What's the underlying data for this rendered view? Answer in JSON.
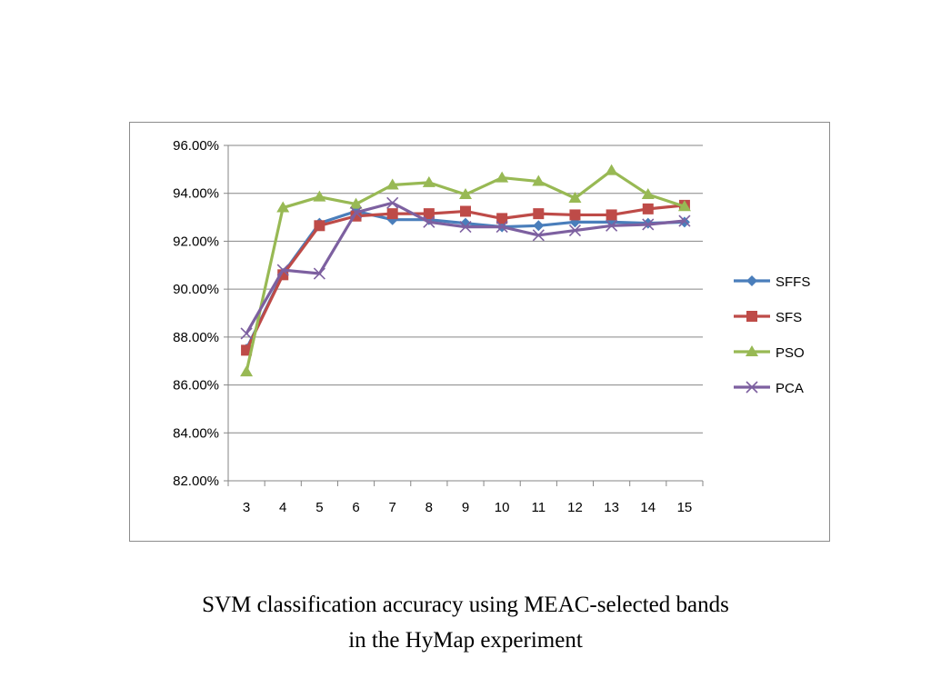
{
  "caption": {
    "line1": "SVM classification accuracy using MEAC-selected bands",
    "line2": "in the HyMap experiment"
  },
  "chart_data": {
    "type": "line",
    "title": "",
    "xlabel": "",
    "ylabel": "",
    "categories": [
      "3",
      "4",
      "5",
      "6",
      "7",
      "8",
      "9",
      "10",
      "11",
      "12",
      "13",
      "14",
      "15"
    ],
    "ylim": [
      82,
      96
    ],
    "ytick_step": 2,
    "ytick_labels": [
      "82.00%",
      "84.00%",
      "86.00%",
      "88.00%",
      "90.00%",
      "92.00%",
      "94.00%",
      "96.00%"
    ],
    "grid": "horizontal",
    "legend_position": "right",
    "series": [
      {
        "name": "SFFS",
        "color": "#4a7ebb",
        "marker": "diamond",
        "values": [
          87.5,
          90.65,
          92.75,
          93.25,
          92.9,
          92.9,
          92.75,
          92.6,
          92.65,
          92.8,
          92.8,
          92.75,
          92.8
        ]
      },
      {
        "name": "SFS",
        "color": "#be4b48",
        "marker": "square",
        "values": [
          87.45,
          90.6,
          92.65,
          93.05,
          93.15,
          93.15,
          93.25,
          92.95,
          93.15,
          93.1,
          93.1,
          93.35,
          93.5
        ]
      },
      {
        "name": "PSO",
        "color": "#98b954",
        "marker": "triangle",
        "values": [
          86.55,
          93.4,
          93.85,
          93.55,
          94.35,
          94.45,
          93.95,
          94.65,
          94.5,
          93.8,
          94.95,
          93.95,
          93.45
        ]
      },
      {
        "name": "PCA",
        "color": "#7d60a0",
        "marker": "x",
        "values": [
          88.15,
          90.8,
          90.65,
          93.2,
          93.6,
          92.8,
          92.6,
          92.6,
          92.25,
          92.45,
          92.65,
          92.7,
          92.85
        ]
      }
    ]
  }
}
